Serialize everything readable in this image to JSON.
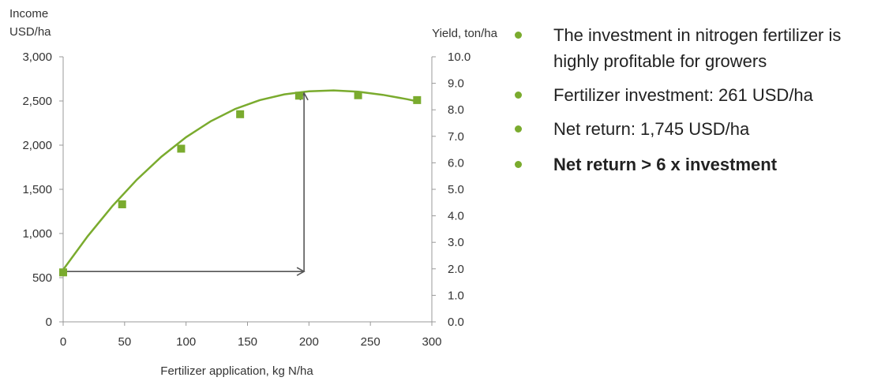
{
  "colors": {
    "series": "#7aab2e",
    "axis": "#999999",
    "arrow": "#555555",
    "bullet": "#7aab2e"
  },
  "bullets": [
    {
      "text": "The investment in nitrogen fertilizer is highly profitable for growers",
      "bold": false
    },
    {
      "text": "Fertilizer investment: 261 USD/ha",
      "bold": false
    },
    {
      "text": "Net return: 1,745 USD/ha",
      "bold": false
    },
    {
      "text": "Net return > 6 x investment",
      "bold": true
    }
  ],
  "chart_data": {
    "type": "scatter",
    "xlabel": "Fertilizer application, kg N/ha",
    "ylabel_left": "Income\nUSD/ha",
    "ylabel_right": "Yield, ton/ha",
    "xlim": [
      0,
      300
    ],
    "ylim_left": [
      0,
      3000
    ],
    "ylim_right": [
      0,
      10
    ],
    "x_ticks": [
      "0",
      "50",
      "100",
      "150",
      "200",
      "250",
      "300"
    ],
    "y_left_ticks": [
      "0",
      "500",
      "1,000",
      "1,500",
      "2,000",
      "2,500",
      "3,000"
    ],
    "y_right_ticks": [
      "0.0",
      "1.0",
      "2.0",
      "3.0",
      "4.0",
      "5.0",
      "6.0",
      "7.0",
      "8.0",
      "9.0",
      "10.0"
    ],
    "grid": false,
    "series": [
      {
        "x": [
          0,
          48,
          96,
          144,
          192,
          240,
          288
        ],
        "y": [
          560,
          1330,
          1960,
          2350,
          2560,
          2565,
          2510
        ]
      }
    ],
    "fit_curve": {
      "x": [
        0,
        20,
        40,
        60,
        80,
        100,
        120,
        140,
        160,
        180,
        200,
        220,
        240,
        260,
        280,
        290
      ],
      "y": [
        590,
        970,
        1310,
        1610,
        1870,
        2090,
        2270,
        2410,
        2510,
        2575,
        2610,
        2620,
        2605,
        2570,
        2520,
        2490
      ]
    },
    "arrows": [
      {
        "from": [
          0,
          570
        ],
        "to": [
          196,
          570
        ]
      },
      {
        "from": [
          196,
          570
        ],
        "to": [
          196,
          2590
        ]
      }
    ]
  }
}
